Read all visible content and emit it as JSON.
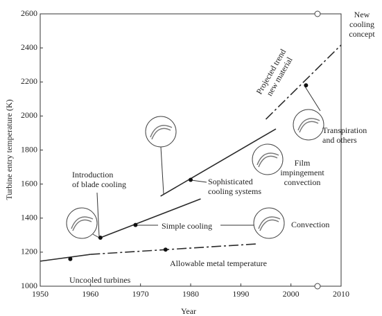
{
  "chart_data": {
    "type": "line",
    "xlabel": "Year",
    "ylabel": "Turbine entry temperature (K)",
    "xlim": [
      1950,
      2010
    ],
    "xticks": [
      1950,
      1960,
      1970,
      1980,
      1990,
      2000,
      2010
    ],
    "ylim": [
      1000,
      2600
    ],
    "yticks": [
      1000,
      1200,
      1400,
      1600,
      1800,
      2000,
      2200,
      2400,
      2600
    ],
    "color": "#2a2a2a",
    "series": [
      {
        "x": [
          1950,
          1960
        ],
        "values": [
          1147,
          1187
        ],
        "dashed": false
      },
      {
        "x": [
          1960,
          1993
        ],
        "values": [
          1187,
          1248
        ],
        "dashed": true
      },
      {
        "x": [
          1962,
          1982
        ],
        "values": [
          1285,
          1513
        ],
        "dashed": false
      },
      {
        "x": [
          1974,
          1997
        ],
        "values": [
          1529,
          1924
        ],
        "dashed": false
      },
      {
        "x": [
          1995,
          2010
        ],
        "values": [
          1981,
          2417
        ],
        "dashed": true
      }
    ],
    "points": {
      "x": [
        1956,
        1962,
        1969,
        1975,
        1980,
        2003
      ],
      "values": [
        1160,
        1285,
        1360,
        1215,
        1625,
        2180
      ]
    },
    "annotations": [
      [
        "Uncooled turbines"
      ],
      [
        "Allowable metal temperature"
      ],
      [
        "Simple cooling"
      ],
      [
        "Convection"
      ],
      [
        "Introduction",
        "of blade cooling"
      ],
      [
        "Sophisticated",
        "cooling systems"
      ],
      [
        "Film",
        "impingement",
        "convection"
      ],
      [
        "Transpiration",
        "and others"
      ],
      [
        "New",
        "cooling",
        "concept"
      ],
      [
        "Projected trend",
        "new material"
      ]
    ]
  }
}
